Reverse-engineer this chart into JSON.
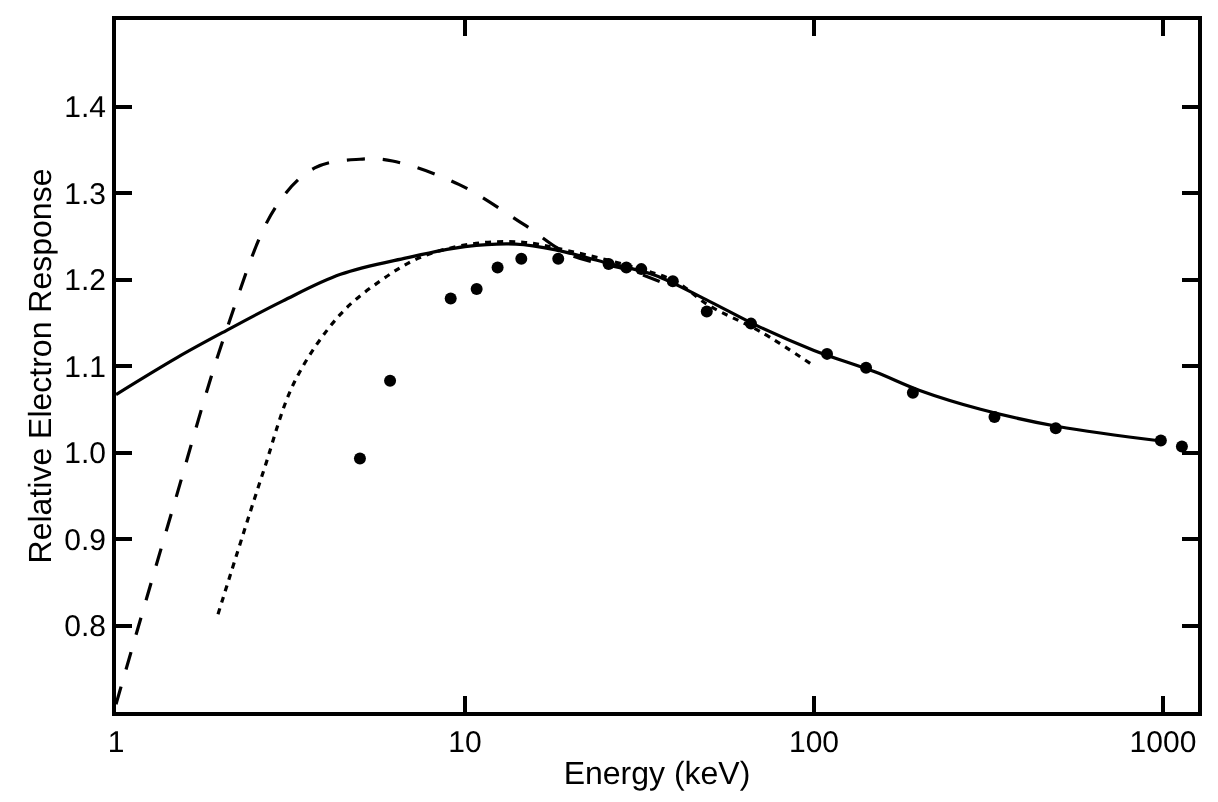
{
  "chart_data": {
    "type": "line",
    "xlabel": "Energy (keV)",
    "ylabel": "Relative Electron Response",
    "log": "x",
    "xlim": [
      1,
      1260
    ],
    "xticks": [
      1,
      10,
      100,
      1000
    ],
    "ylim": [
      0.7,
      1.5
    ],
    "yticks": [
      0.8,
      0.9,
      {
        "value": 1.0,
        "label": "1.0"
      },
      1.1,
      1.2,
      1.3,
      1.4
    ],
    "series": [
      {
        "line_style": "solid",
        "color": "#000000",
        "x": [
          1,
          1.5,
          2.07,
          3,
          4.4,
          6.8,
          10,
          14,
          18.3,
          25,
          35,
          50,
          70,
          100,
          150,
          200,
          300,
          500,
          1000
        ],
        "values": [
          1.067,
          1.11,
          1.141,
          1.175,
          1.206,
          1.225,
          1.238,
          1.241,
          1.234,
          1.22,
          1.205,
          1.175,
          1.145,
          1.118,
          1.093,
          1.072,
          1.05,
          1.03,
          1.013
        ]
      },
      {
        "line_style": "dashed",
        "color": "#000000",
        "x": [
          1,
          1.44,
          2.07,
          2.86,
          3.71,
          5,
          6.2,
          9.6,
          14.7,
          19.9,
          30,
          40
        ],
        "values": [
          0.709,
          0.929,
          1.141,
          1.283,
          1.329,
          1.339,
          1.337,
          1.31,
          1.264,
          1.229,
          1.21,
          1.19
        ]
      },
      {
        "line_style": "dotted",
        "color": "#000000",
        "x": [
          1.96,
          2.63,
          3.26,
          4.4,
          5.7,
          7.4,
          10.4,
          14.7,
          19.9,
          30,
          40,
          50,
          70,
          100
        ],
        "values": [
          0.813,
          0.975,
          1.083,
          1.16,
          1.198,
          1.225,
          1.241,
          1.243,
          1.233,
          1.215,
          1.198,
          1.17,
          1.14,
          1.1
        ]
      },
      {
        "type": "scatter",
        "marker": "circle",
        "color": "#000000",
        "x": [
          5,
          6.1,
          9.1,
          10.8,
          12.4,
          14.5,
          18.5,
          25.8,
          29,
          32,
          39.4,
          49.3,
          66,
          109,
          141,
          192,
          329,
          493,
          986,
          1133
        ],
        "values": [
          0.993,
          1.083,
          1.178,
          1.189,
          1.214,
          1.224,
          1.224,
          1.218,
          1.214,
          1.212,
          1.198,
          1.163,
          1.149,
          1.114,
          1.098,
          1.069,
          1.041,
          1.028,
          1.014,
          1.007
        ]
      }
    ]
  }
}
